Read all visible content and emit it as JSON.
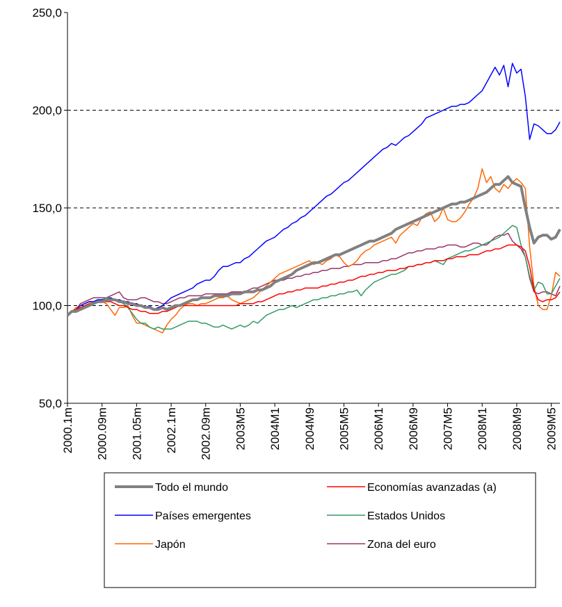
{
  "chart_data": {
    "type": "line",
    "categories": [
      "2000.1m",
      null,
      null,
      null,
      null,
      null,
      null,
      null,
      "2000.09m",
      null,
      null,
      null,
      null,
      null,
      null,
      null,
      "2001.05m",
      null,
      null,
      null,
      null,
      null,
      null,
      null,
      "2002.1m",
      null,
      null,
      null,
      null,
      null,
      null,
      null,
      "2002.09m",
      null,
      null,
      null,
      null,
      null,
      null,
      null,
      "2003M5",
      null,
      null,
      null,
      null,
      null,
      null,
      null,
      "2004M1",
      null,
      null,
      null,
      null,
      null,
      null,
      null,
      "2004M9",
      null,
      null,
      null,
      null,
      null,
      null,
      null,
      "2005M5",
      null,
      null,
      null,
      null,
      null,
      null,
      null,
      "2006M1",
      null,
      null,
      null,
      null,
      null,
      null,
      null,
      "2006M9",
      null,
      null,
      null,
      null,
      null,
      null,
      null,
      "2007M5",
      null,
      null,
      null,
      null,
      null,
      null,
      null,
      "2008M1",
      null,
      null,
      null,
      null,
      null,
      null,
      null,
      "2008M9",
      null,
      null,
      null,
      null,
      null,
      null,
      null,
      "2009M5",
      null,
      null
    ],
    "series": [
      {
        "name": "Todo el mundo",
        "color": "#808080",
        "values": [
          95,
          97,
          97,
          98,
          99,
          100,
          101,
          102,
          102,
          103,
          103,
          103,
          102,
          102,
          101,
          101,
          100,
          100,
          99,
          99,
          98,
          98,
          99,
          98,
          99,
          100,
          100,
          101,
          102,
          103,
          103,
          104,
          104,
          104,
          105,
          105,
          105,
          105,
          106,
          106,
          106,
          107,
          107,
          107,
          108,
          108,
          109,
          110,
          112,
          113,
          114,
          115,
          116,
          118,
          119,
          120,
          121,
          122,
          122,
          123,
          124,
          125,
          126,
          126,
          127,
          128,
          129,
          130,
          131,
          132,
          133,
          133,
          134,
          135,
          136,
          137,
          139,
          140,
          141,
          142,
          143,
          144,
          145,
          146,
          147,
          148,
          149,
          150,
          151,
          152,
          152,
          153,
          153,
          154,
          155,
          156,
          157,
          158,
          160,
          162,
          162,
          164,
          166,
          163,
          162,
          161,
          150,
          140,
          132,
          135,
          136,
          136,
          134,
          135,
          139
        ]
      },
      {
        "name": "Economías avanzadas (a)",
        "color": "#ff0000",
        "values": [
          95,
          97,
          98,
          99,
          100,
          101,
          101,
          102,
          102,
          102,
          102,
          101,
          100,
          100,
          99,
          98,
          98,
          97,
          97,
          96,
          96,
          96,
          97,
          97,
          98,
          99,
          100,
          100,
          100,
          100,
          100,
          100,
          100,
          100,
          100,
          100,
          100,
          100,
          100,
          100,
          101,
          101,
          101,
          101,
          102,
          102,
          103,
          104,
          105,
          106,
          106,
          107,
          107,
          108,
          108,
          109,
          109,
          109,
          109,
          110,
          110,
          111,
          111,
          112,
          112,
          113,
          113,
          114,
          115,
          115,
          116,
          116,
          117,
          117,
          118,
          118,
          118,
          119,
          119,
          120,
          120,
          121,
          121,
          122,
          122,
          123,
          123,
          123,
          124,
          124,
          125,
          125,
          125,
          126,
          126,
          126,
          127,
          128,
          128,
          129,
          129,
          130,
          131,
          131,
          131,
          130,
          128,
          120,
          108,
          103,
          102,
          103,
          103,
          104,
          107
        ]
      },
      {
        "name": "Países emergentes",
        "color": "#0000ff",
        "values": [
          95,
          97,
          98,
          100,
          101,
          102,
          102,
          103,
          103,
          103,
          104,
          103,
          103,
          102,
          102,
          101,
          101,
          100,
          99,
          100,
          98,
          99,
          100,
          102,
          104,
          105,
          106,
          107,
          108,
          109,
          111,
          112,
          113,
          113,
          115,
          118,
          120,
          120,
          121,
          122,
          122,
          124,
          125,
          127,
          129,
          131,
          133,
          134,
          135,
          137,
          139,
          140,
          142,
          143,
          145,
          146,
          148,
          150,
          152,
          154,
          156,
          157,
          159,
          161,
          163,
          164,
          166,
          168,
          170,
          172,
          174,
          176,
          178,
          180,
          181,
          183,
          182,
          184,
          186,
          187,
          189,
          191,
          193,
          196,
          197,
          198,
          199,
          200,
          201,
          202,
          202,
          203,
          203,
          204,
          206,
          208,
          210,
          214,
          218,
          222,
          218,
          223,
          212,
          224,
          219,
          221,
          207,
          185,
          193,
          192,
          190,
          188,
          188,
          190,
          194
        ]
      },
      {
        "name": "Estados Unidos",
        "color": "#339966",
        "values": [
          95,
          97,
          98,
          100,
          101,
          102,
          102,
          103,
          103,
          104,
          104,
          103,
          102,
          101,
          99,
          96,
          93,
          91,
          91,
          89,
          88,
          89,
          88,
          88,
          88,
          89,
          90,
          91,
          92,
          92,
          92,
          91,
          91,
          90,
          89,
          89,
          90,
          89,
          88,
          89,
          90,
          89,
          90,
          92,
          91,
          93,
          95,
          96,
          97,
          98,
          98,
          99,
          100,
          99,
          100,
          101,
          102,
          103,
          103,
          104,
          104,
          105,
          105,
          106,
          106,
          107,
          107,
          108,
          105,
          108,
          110,
          112,
          113,
          114,
          115,
          116,
          116,
          117,
          118,
          120,
          120,
          121,
          121,
          122,
          122,
          123,
          122,
          121,
          124,
          125,
          126,
          127,
          128,
          128,
          129,
          130,
          131,
          132,
          133,
          134,
          135,
          137,
          139,
          141,
          140,
          131,
          125,
          115,
          108,
          112,
          111,
          106,
          106,
          110,
          114
        ]
      },
      {
        "name": "Japón",
        "color": "#ff6600",
        "values": [
          95,
          97,
          99,
          100,
          101,
          102,
          101,
          102,
          102,
          101,
          98,
          95,
          99,
          99,
          100,
          95,
          91,
          91,
          90,
          89,
          88,
          87,
          86,
          90,
          93,
          95,
          98,
          100,
          101,
          101,
          100,
          101,
          101,
          102,
          103,
          104,
          104,
          105,
          103,
          102,
          101,
          102,
          103,
          104,
          106,
          108,
          110,
          112,
          114,
          116,
          117,
          118,
          119,
          120,
          121,
          122,
          123,
          121,
          122,
          121,
          123,
          124,
          126,
          125,
          122,
          120,
          121,
          123,
          126,
          128,
          129,
          131,
          132,
          133,
          134,
          135,
          132,
          136,
          138,
          140,
          142,
          141,
          145,
          147,
          148,
          143,
          145,
          150,
          144,
          143,
          143,
          145,
          148,
          152,
          155,
          160,
          170,
          163,
          166,
          160,
          158,
          162,
          160,
          163,
          165,
          163,
          160,
          130,
          110,
          100,
          98,
          98,
          105,
          117,
          115
        ]
      },
      {
        "name": "Zona del euro",
        "color": "#993366",
        "values": [
          95,
          97,
          98,
          101,
          102,
          103,
          104,
          104,
          104,
          104,
          105,
          106,
          107,
          104,
          103,
          103,
          103,
          104,
          104,
          103,
          102,
          102,
          101,
          101,
          102,
          103,
          104,
          104,
          105,
          105,
          105,
          105,
          106,
          106,
          106,
          106,
          106,
          106,
          107,
          107,
          107,
          107,
          108,
          109,
          109,
          110,
          111,
          112,
          113,
          113,
          113,
          114,
          114,
          115,
          115,
          116,
          116,
          117,
          117,
          118,
          118,
          119,
          119,
          119,
          120,
          120,
          121,
          121,
          121,
          122,
          122,
          122,
          122,
          123,
          123,
          124,
          124,
          125,
          126,
          127,
          127,
          128,
          128,
          129,
          129,
          129,
          130,
          130,
          131,
          131,
          131,
          130,
          130,
          131,
          132,
          132,
          131,
          131,
          133,
          135,
          136,
          136,
          137,
          133,
          131,
          129,
          125,
          114,
          107,
          106,
          107,
          107,
          106,
          105,
          110
        ]
      }
    ],
    "ylim": [
      50,
      250
    ],
    "yticks": [
      {
        "value": 50,
        "label": "50,0"
      },
      {
        "value": 100,
        "label": "100,0"
      },
      {
        "value": 150,
        "label": "150,0"
      },
      {
        "value": 200,
        "label": "200,0"
      },
      {
        "value": 250,
        "label": "250,0"
      }
    ],
    "grid": true,
    "legend": "bottom"
  }
}
